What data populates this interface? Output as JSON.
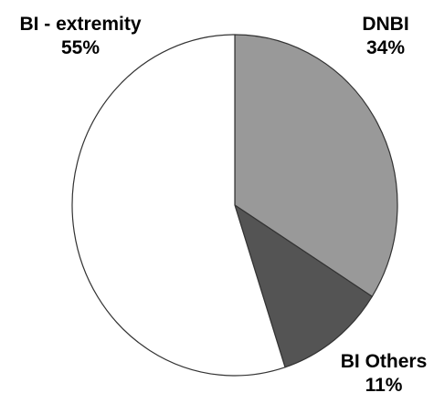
{
  "chart_data": {
    "type": "pie",
    "title": "",
    "categories": [
      "BI - extremity",
      "DNBI",
      "BI Others"
    ],
    "values": [
      55,
      34,
      11
    ],
    "labels": [
      "55%",
      "34%",
      "11%"
    ],
    "start_angle_deg": 0,
    "direction": "clockwise",
    "colors": [
      "#ffffff",
      "#999999",
      "#545454"
    ],
    "stroke_color": "#333333",
    "legend": "none"
  }
}
